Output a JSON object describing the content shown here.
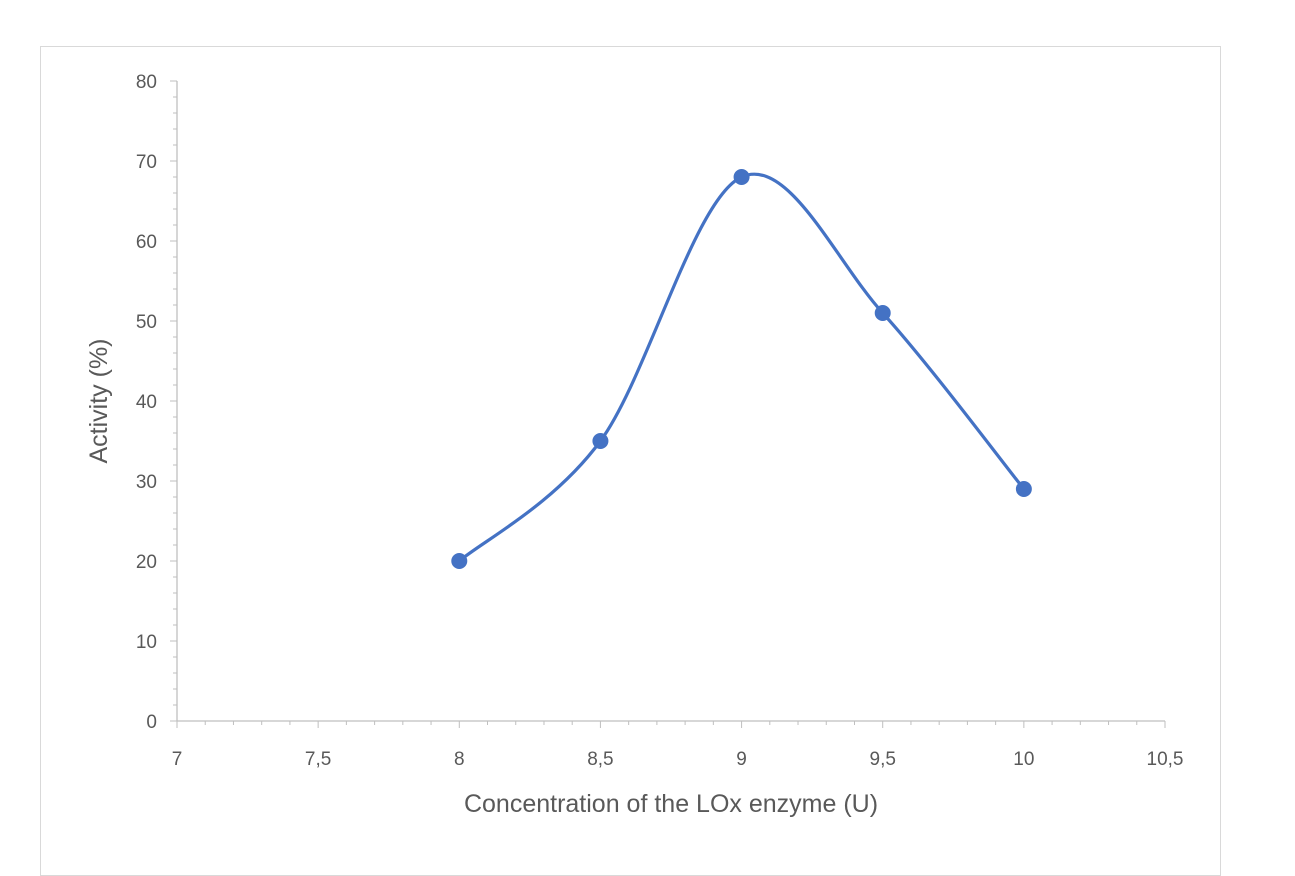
{
  "chart_data": {
    "type": "scatter",
    "title": "",
    "xlabel": "Concentration of the LOx enzyme (U)",
    "ylabel": "Activity (%)",
    "xlim": [
      7,
      10.5
    ],
    "ylim": [
      0,
      80
    ],
    "x_ticks": [
      7,
      7.5,
      8,
      8.5,
      9,
      9.5,
      10,
      10.5
    ],
    "x_tick_labels": [
      "7",
      "7,5",
      "8",
      "8,5",
      "9",
      "9,5",
      "10",
      "10,5"
    ],
    "y_ticks": [
      0,
      10,
      20,
      30,
      40,
      50,
      60,
      70,
      80
    ],
    "y_tick_labels": [
      "0",
      "10",
      "20",
      "30",
      "40",
      "50",
      "60",
      "70",
      "80"
    ],
    "series": [
      {
        "x": [
          8,
          8.5,
          9,
          9.5,
          10
        ],
        "y": [
          20,
          35,
          68,
          51,
          29
        ],
        "line": "smooth",
        "color": "#4472c4"
      }
    ],
    "grid": false,
    "legend": "none"
  }
}
